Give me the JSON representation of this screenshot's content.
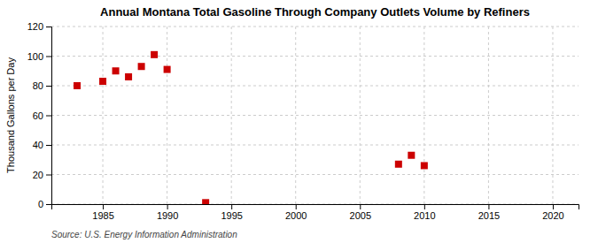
{
  "chart_data": {
    "type": "scatter",
    "title": "Annual Montana Total Gasoline Through Company Outlets Volume by Refiners",
    "ylabel": "Thousand Gallons per Day",
    "source": "Source: U.S. Energy Information Administration",
    "x": [
      1983,
      1985,
      1986,
      1987,
      1988,
      1989,
      1990,
      1993,
      2008,
      2009,
      2010
    ],
    "values": [
      80,
      83,
      90,
      86,
      93,
      101,
      91,
      1,
      27,
      33,
      26
    ],
    "color": "#cc0000",
    "marker": "square",
    "xlim": [
      1981,
      2022
    ],
    "ylim": [
      0,
      120
    ],
    "xticks": [
      1985,
      1990,
      1995,
      2000,
      2005,
      2010,
      2015,
      2020
    ],
    "yticks": [
      0,
      20,
      40,
      60,
      80,
      100,
      120
    ],
    "grid": true
  }
}
